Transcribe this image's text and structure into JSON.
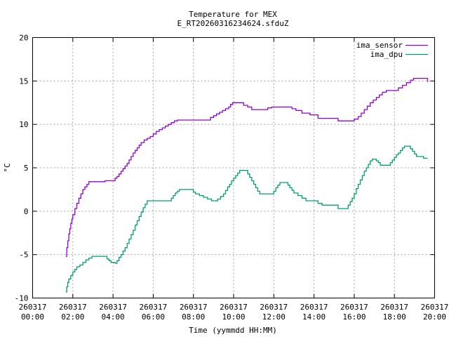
{
  "chart_data": {
    "type": "line",
    "title": "Temperature for MEX",
    "subtitle": "E_RT20260316234624.sfduZ",
    "xlabel": "Time (yymmdd HH:MM)",
    "ylabel": "°C",
    "xlim": [
      0,
      20
    ],
    "ylim": [
      -10,
      20
    ],
    "grid": true,
    "legend_position": "top-right",
    "x_ticks": [
      {
        "value": 0,
        "line1": "260317",
        "line2": "00:00"
      },
      {
        "value": 2,
        "line1": "260317",
        "line2": "02:00"
      },
      {
        "value": 4,
        "line1": "260317",
        "line2": "04:00"
      },
      {
        "value": 6,
        "line1": "260317",
        "line2": "06:00"
      },
      {
        "value": 8,
        "line1": "260317",
        "line2": "08:00"
      },
      {
        "value": 10,
        "line1": "260317",
        "line2": "10:00"
      },
      {
        "value": 12,
        "line1": "260317",
        "line2": "12:00"
      },
      {
        "value": 14,
        "line1": "260317",
        "line2": "14:00"
      },
      {
        "value": 16,
        "line1": "260317",
        "line2": "16:00"
      },
      {
        "value": 18,
        "line1": "260317",
        "line2": "18:00"
      },
      {
        "value": 20,
        "line1": "260317",
        "line2": "20:00"
      }
    ],
    "y_ticks": [
      {
        "value": -10,
        "label": "-10"
      },
      {
        "value": -5,
        "label": "-5"
      },
      {
        "value": 0,
        "label": "0"
      },
      {
        "value": 5,
        "label": "5"
      },
      {
        "value": 10,
        "label": "10"
      },
      {
        "value": 15,
        "label": "15"
      },
      {
        "value": 20,
        "label": "20"
      }
    ],
    "series": [
      {
        "name": "ima_sensor",
        "color": "#9400d3",
        "points": [
          [
            1.65,
            -5.2
          ],
          [
            1.7,
            -4.2
          ],
          [
            1.75,
            -3.4
          ],
          [
            1.8,
            -2.6
          ],
          [
            1.85,
            -2.0
          ],
          [
            1.9,
            -1.4
          ],
          [
            1.95,
            -0.9
          ],
          [
            2.0,
            -0.4
          ],
          [
            2.1,
            0.3
          ],
          [
            2.2,
            0.9
          ],
          [
            2.3,
            1.5
          ],
          [
            2.4,
            2.0
          ],
          [
            2.5,
            2.5
          ],
          [
            2.6,
            2.8
          ],
          [
            2.7,
            3.1
          ],
          [
            2.8,
            3.4
          ],
          [
            3.4,
            3.4
          ],
          [
            3.5,
            3.4
          ],
          [
            3.6,
            3.5
          ],
          [
            4.05,
            3.5
          ],
          [
            4.1,
            3.8
          ],
          [
            4.2,
            4.0
          ],
          [
            4.3,
            4.3
          ],
          [
            4.4,
            4.6
          ],
          [
            4.5,
            4.9
          ],
          [
            4.6,
            5.2
          ],
          [
            4.7,
            5.5
          ],
          [
            4.8,
            5.9
          ],
          [
            4.9,
            6.3
          ],
          [
            5.0,
            6.7
          ],
          [
            5.1,
            7.0
          ],
          [
            5.2,
            7.3
          ],
          [
            5.3,
            7.6
          ],
          [
            5.4,
            7.9
          ],
          [
            5.55,
            8.2
          ],
          [
            5.7,
            8.4
          ],
          [
            5.85,
            8.6
          ],
          [
            6.0,
            8.9
          ],
          [
            6.15,
            9.2
          ],
          [
            6.3,
            9.4
          ],
          [
            6.45,
            9.6
          ],
          [
            6.6,
            9.8
          ],
          [
            6.75,
            10.0
          ],
          [
            6.9,
            10.2
          ],
          [
            7.05,
            10.4
          ],
          [
            7.2,
            10.5
          ],
          [
            7.5,
            10.5
          ],
          [
            8.0,
            10.5
          ],
          [
            8.5,
            10.5
          ],
          [
            8.8,
            10.5
          ],
          [
            8.85,
            10.8
          ],
          [
            9.0,
            11.0
          ],
          [
            9.15,
            11.2
          ],
          [
            9.3,
            11.4
          ],
          [
            9.45,
            11.6
          ],
          [
            9.6,
            11.8
          ],
          [
            9.75,
            12.0
          ],
          [
            9.85,
            12.3
          ],
          [
            9.95,
            12.5
          ],
          [
            10.4,
            12.5
          ],
          [
            10.5,
            12.2
          ],
          [
            10.7,
            12.0
          ],
          [
            10.9,
            11.7
          ],
          [
            11.5,
            11.7
          ],
          [
            11.7,
            11.9
          ],
          [
            11.9,
            12.0
          ],
          [
            12.7,
            12.0
          ],
          [
            12.9,
            11.8
          ],
          [
            13.1,
            11.6
          ],
          [
            13.4,
            11.3
          ],
          [
            13.8,
            11.1
          ],
          [
            14.2,
            10.7
          ],
          [
            15.0,
            10.7
          ],
          [
            15.2,
            10.4
          ],
          [
            15.9,
            10.4
          ],
          [
            16.0,
            10.6
          ],
          [
            16.2,
            10.9
          ],
          [
            16.35,
            11.3
          ],
          [
            16.5,
            11.7
          ],
          [
            16.65,
            12.1
          ],
          [
            16.8,
            12.5
          ],
          [
            16.95,
            12.8
          ],
          [
            17.1,
            13.1
          ],
          [
            17.25,
            13.4
          ],
          [
            17.4,
            13.7
          ],
          [
            17.6,
            13.9
          ],
          [
            18.0,
            13.9
          ],
          [
            18.2,
            14.2
          ],
          [
            18.4,
            14.5
          ],
          [
            18.6,
            14.8
          ],
          [
            18.8,
            15.1
          ],
          [
            18.95,
            15.3
          ],
          [
            19.6,
            15.3
          ],
          [
            19.65,
            14.9
          ]
        ]
      },
      {
        "name": "ima_dpu",
        "color": "#009e73",
        "points": [
          [
            1.65,
            -9.3
          ],
          [
            1.7,
            -8.7
          ],
          [
            1.75,
            -8.2
          ],
          [
            1.8,
            -7.8
          ],
          [
            1.9,
            -7.4
          ],
          [
            2.0,
            -7.0
          ],
          [
            2.1,
            -6.7
          ],
          [
            2.2,
            -6.4
          ],
          [
            2.35,
            -6.2
          ],
          [
            2.5,
            -5.9
          ],
          [
            2.65,
            -5.6
          ],
          [
            2.8,
            -5.4
          ],
          [
            2.95,
            -5.2
          ],
          [
            3.6,
            -5.2
          ],
          [
            3.7,
            -5.5
          ],
          [
            3.8,
            -5.7
          ],
          [
            3.9,
            -5.9
          ],
          [
            4.1,
            -6.0
          ],
          [
            4.2,
            -5.7
          ],
          [
            4.3,
            -5.3
          ],
          [
            4.4,
            -5.0
          ],
          [
            4.5,
            -4.6
          ],
          [
            4.6,
            -4.2
          ],
          [
            4.7,
            -3.7
          ],
          [
            4.8,
            -3.2
          ],
          [
            4.9,
            -2.7
          ],
          [
            5.0,
            -2.2
          ],
          [
            5.1,
            -1.6
          ],
          [
            5.2,
            -1.1
          ],
          [
            5.3,
            -0.6
          ],
          [
            5.4,
            -0.1
          ],
          [
            5.5,
            0.4
          ],
          [
            5.6,
            0.8
          ],
          [
            5.7,
            1.2
          ],
          [
            6.3,
            1.2
          ],
          [
            6.8,
            1.2
          ],
          [
            6.9,
            1.5
          ],
          [
            7.0,
            1.8
          ],
          [
            7.1,
            2.1
          ],
          [
            7.2,
            2.3
          ],
          [
            7.3,
            2.5
          ],
          [
            7.9,
            2.5
          ],
          [
            8.0,
            2.2
          ],
          [
            8.1,
            2.0
          ],
          [
            8.3,
            1.8
          ],
          [
            8.5,
            1.6
          ],
          [
            8.7,
            1.4
          ],
          [
            8.9,
            1.2
          ],
          [
            9.2,
            1.4
          ],
          [
            9.35,
            1.7
          ],
          [
            9.5,
            2.0
          ],
          [
            9.6,
            2.4
          ],
          [
            9.7,
            2.8
          ],
          [
            9.8,
            3.1
          ],
          [
            9.9,
            3.5
          ],
          [
            10.0,
            3.8
          ],
          [
            10.1,
            4.1
          ],
          [
            10.2,
            4.4
          ],
          [
            10.3,
            4.7
          ],
          [
            10.6,
            4.7
          ],
          [
            10.7,
            4.3
          ],
          [
            10.8,
            3.9
          ],
          [
            10.9,
            3.5
          ],
          [
            11.0,
            3.1
          ],
          [
            11.1,
            2.7
          ],
          [
            11.2,
            2.3
          ],
          [
            11.3,
            2.0
          ],
          [
            11.9,
            2.0
          ],
          [
            12.0,
            2.3
          ],
          [
            12.1,
            2.7
          ],
          [
            12.2,
            3.0
          ],
          [
            12.3,
            3.3
          ],
          [
            12.6,
            3.3
          ],
          [
            12.7,
            3.0
          ],
          [
            12.8,
            2.7
          ],
          [
            12.9,
            2.4
          ],
          [
            13.0,
            2.1
          ],
          [
            13.2,
            1.8
          ],
          [
            13.4,
            1.5
          ],
          [
            13.6,
            1.2
          ],
          [
            14.0,
            1.2
          ],
          [
            14.2,
            0.9
          ],
          [
            14.4,
            0.7
          ],
          [
            15.0,
            0.7
          ],
          [
            15.2,
            0.3
          ],
          [
            15.6,
            0.3
          ],
          [
            15.7,
            0.7
          ],
          [
            15.8,
            1.1
          ],
          [
            15.9,
            1.5
          ],
          [
            16.0,
            2.0
          ],
          [
            16.1,
            2.6
          ],
          [
            16.2,
            3.1
          ],
          [
            16.3,
            3.6
          ],
          [
            16.4,
            4.1
          ],
          [
            16.5,
            4.6
          ],
          [
            16.6,
            5.0
          ],
          [
            16.7,
            5.4
          ],
          [
            16.8,
            5.8
          ],
          [
            16.9,
            6.0
          ],
          [
            17.0,
            6.0
          ],
          [
            17.1,
            5.8
          ],
          [
            17.2,
            5.6
          ],
          [
            17.3,
            5.3
          ],
          [
            17.7,
            5.3
          ],
          [
            17.8,
            5.6
          ],
          [
            17.9,
            5.9
          ],
          [
            18.0,
            6.2
          ],
          [
            18.1,
            6.5
          ],
          [
            18.2,
            6.7
          ],
          [
            18.3,
            7.0
          ],
          [
            18.4,
            7.3
          ],
          [
            18.5,
            7.5
          ],
          [
            18.7,
            7.5
          ],
          [
            18.8,
            7.2
          ],
          [
            18.9,
            6.9
          ],
          [
            19.0,
            6.6
          ],
          [
            19.1,
            6.3
          ],
          [
            19.35,
            6.3
          ],
          [
            19.45,
            6.1
          ],
          [
            19.65,
            6.1
          ]
        ]
      }
    ]
  }
}
